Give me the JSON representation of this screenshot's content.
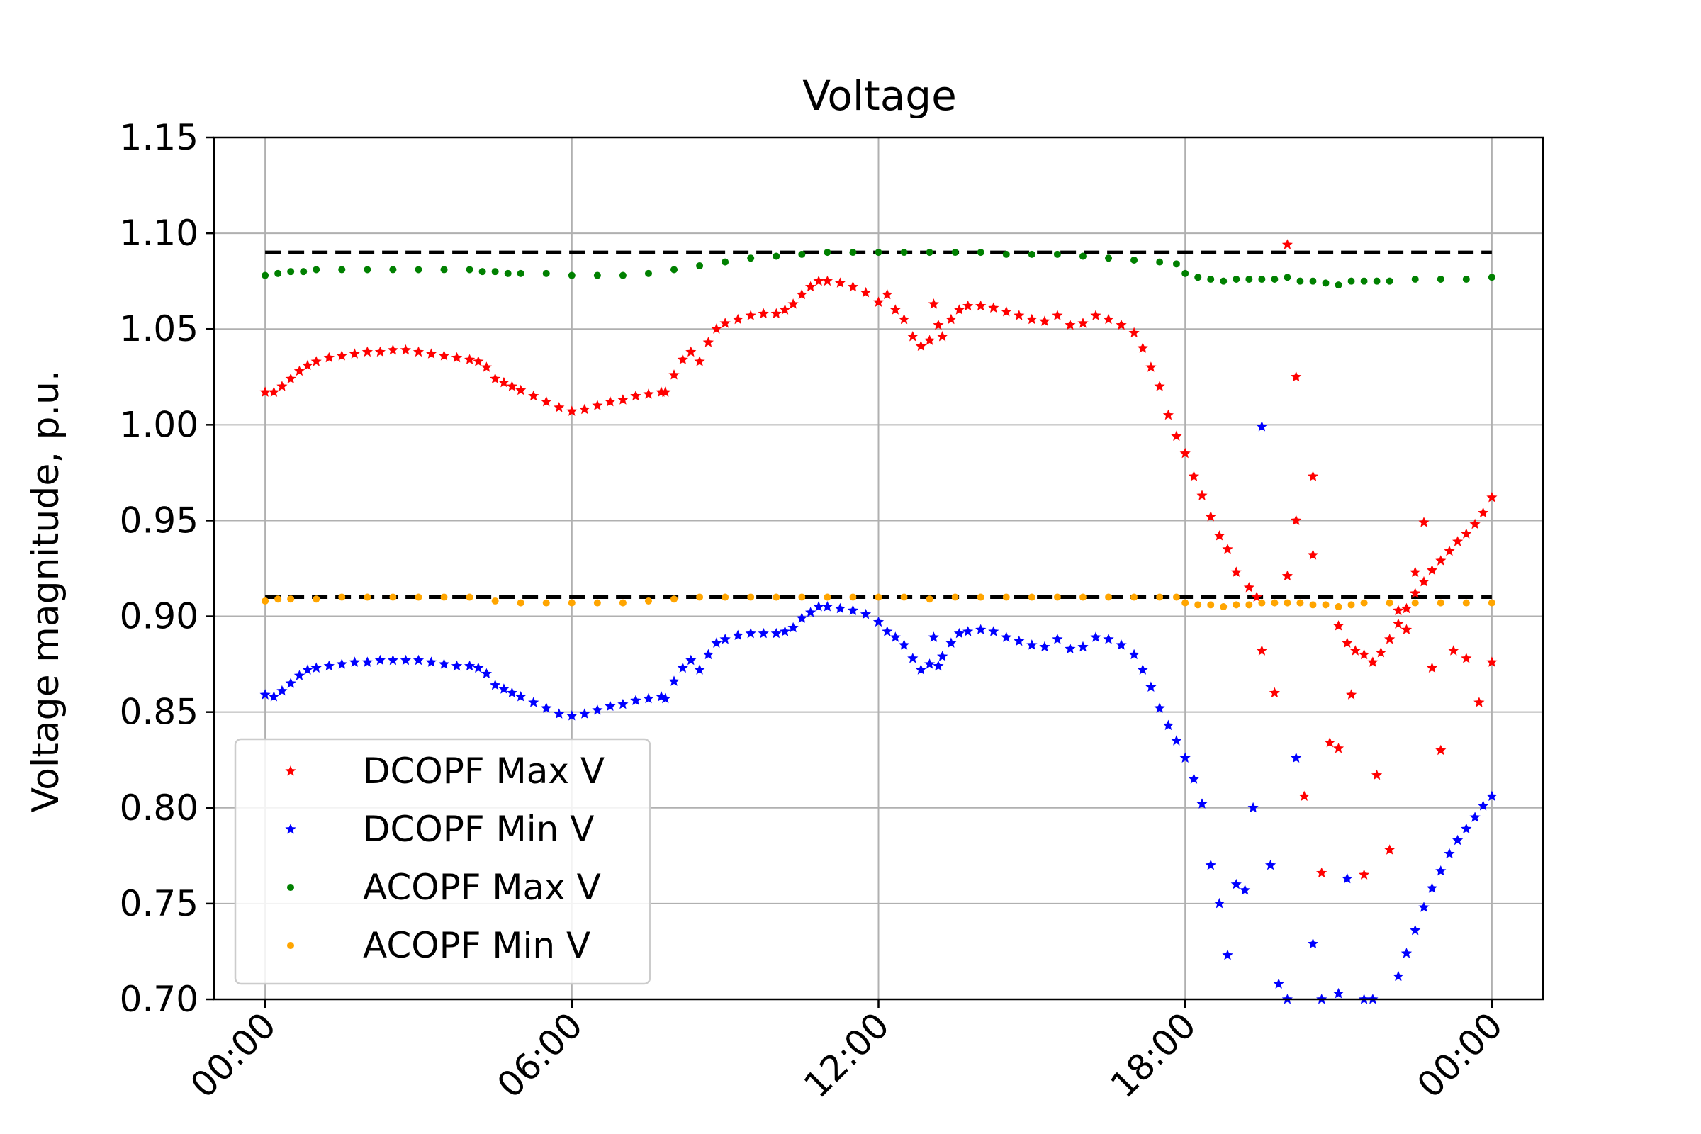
{
  "chart_data": {
    "type": "scatter",
    "title": "Voltage",
    "xlabel": "",
    "ylabel": "Voltage magnitude, p.u.",
    "ylim": [
      0.7,
      1.15
    ],
    "xlim": [
      -1,
      25
    ],
    "x_ticks": [
      {
        "value": 0,
        "label": "00:00"
      },
      {
        "value": 6,
        "label": "06:00"
      },
      {
        "value": 12,
        "label": "12:00"
      },
      {
        "value": 18,
        "label": "18:00"
      },
      {
        "value": 24,
        "label": "00:00"
      }
    ],
    "y_ticks": [
      {
        "value": 0.7,
        "label": "0.70"
      },
      {
        "value": 0.75,
        "label": "0.75"
      },
      {
        "value": 0.8,
        "label": "0.80"
      },
      {
        "value": 0.85,
        "label": "0.85"
      },
      {
        "value": 0.9,
        "label": "0.90"
      },
      {
        "value": 0.95,
        "label": "0.95"
      },
      {
        "value": 1.0,
        "label": "1.00"
      },
      {
        "value": 1.05,
        "label": "1.05"
      },
      {
        "value": 1.1,
        "label": "1.10"
      },
      {
        "value": 1.15,
        "label": "1.15"
      }
    ],
    "grid": true,
    "legend_position": "lower-left",
    "limits": [
      {
        "value": 1.09,
        "x": [
          0,
          24
        ],
        "color": "#000000",
        "style": "dashed"
      },
      {
        "value": 0.91,
        "x": [
          0,
          24
        ],
        "color": "#000000",
        "style": "dashed"
      }
    ],
    "series": [
      {
        "name": "DCOPF Max V",
        "color": "#ff0000",
        "marker": "star",
        "x": [
          0.0,
          0.17,
          0.33,
          0.5,
          0.67,
          0.83,
          1.0,
          1.25,
          1.5,
          1.75,
          2.0,
          2.25,
          2.5,
          2.75,
          3.0,
          3.25,
          3.5,
          3.75,
          4.0,
          4.17,
          4.33,
          4.5,
          4.67,
          4.83,
          5.0,
          5.25,
          5.5,
          5.75,
          6.0,
          6.25,
          6.5,
          6.75,
          7.0,
          7.25,
          7.5,
          7.75,
          7.83,
          8.0,
          8.17,
          8.33,
          8.5,
          8.67,
          8.83,
          9.0,
          9.25,
          9.5,
          9.75,
          10.0,
          10.17,
          10.33,
          10.5,
          10.67,
          10.83,
          11.0,
          11.25,
          11.5,
          11.75,
          12.0,
          12.17,
          12.33,
          12.5,
          12.67,
          12.83,
          13.0,
          13.08,
          13.17,
          13.25,
          13.42,
          13.58,
          13.75,
          14.0,
          14.25,
          14.5,
          14.75,
          15.0,
          15.25,
          15.5,
          15.75,
          16.0,
          16.25,
          16.5,
          16.75,
          17.0,
          17.17,
          17.33,
          17.5,
          17.67,
          17.83,
          18.0,
          18.17,
          18.33,
          18.5,
          18.67,
          18.83,
          19.0,
          19.25,
          19.5,
          19.75,
          20.0,
          20.17,
          20.33,
          20.5,
          20.67,
          20.83,
          21.0,
          21.25,
          21.5,
          21.75,
          22.0,
          22.17,
          22.33,
          22.5,
          22.67,
          22.83,
          23.0,
          23.25,
          23.5,
          23.75,
          24.0
        ],
        "y": [
          1.017,
          1.017,
          1.02,
          1.024,
          1.028,
          1.031,
          1.033,
          1.035,
          1.036,
          1.037,
          1.038,
          1.038,
          1.039,
          1.039,
          1.038,
          1.037,
          1.036,
          1.035,
          1.034,
          1.033,
          1.03,
          1.024,
          1.022,
          1.02,
          1.018,
          1.015,
          1.012,
          1.009,
          1.007,
          1.008,
          1.01,
          1.012,
          1.013,
          1.015,
          1.016,
          1.017,
          1.017,
          1.026,
          1.034,
          1.038,
          1.033,
          1.043,
          1.05,
          1.053,
          1.055,
          1.057,
          1.058,
          1.058,
          1.06,
          1.063,
          1.068,
          1.072,
          1.075,
          1.075,
          1.074,
          1.072,
          1.069,
          1.064,
          1.068,
          1.06,
          1.055,
          1.046,
          1.041,
          1.044,
          1.063,
          1.052,
          1.046,
          1.055,
          1.06,
          1.062,
          1.062,
          1.061,
          1.059,
          1.057,
          1.055,
          1.054,
          1.057,
          1.052,
          1.053,
          1.057,
          1.055,
          1.052,
          1.048,
          1.04,
          1.03,
          1.02,
          1.005,
          0.994,
          0.985,
          0.973,
          0.963,
          0.952,
          0.942,
          0.935,
          0.923,
          0.915,
          0.882,
          0.86,
          0.921,
          0.95,
          0.806,
          0.932,
          0.766,
          0.834,
          0.831,
          0.859,
          0.765,
          0.817,
          0.778,
          0.903,
          0.893,
          0.923,
          0.949,
          0.873,
          0.83,
          0.882,
          0.878,
          0.855,
          0.876
        ],
        "extra_points": [
          {
            "x": 19.4,
            "y": 0.91
          },
          {
            "x": 20.0,
            "y": 1.094
          },
          {
            "x": 20.17,
            "y": 1.025
          },
          {
            "x": 20.5,
            "y": 0.973
          },
          {
            "x": 21.0,
            "y": 0.895
          },
          {
            "x": 21.17,
            "y": 0.886
          },
          {
            "x": 21.33,
            "y": 0.882
          },
          {
            "x": 21.5,
            "y": 0.88
          },
          {
            "x": 21.67,
            "y": 0.876
          },
          {
            "x": 21.83,
            "y": 0.881
          },
          {
            "x": 22.0,
            "y": 0.888
          },
          {
            "x": 22.17,
            "y": 0.896
          },
          {
            "x": 22.33,
            "y": 0.904
          },
          {
            "x": 22.5,
            "y": 0.912
          },
          {
            "x": 22.67,
            "y": 0.918
          },
          {
            "x": 22.83,
            "y": 0.924
          },
          {
            "x": 23.0,
            "y": 0.929
          },
          {
            "x": 23.17,
            "y": 0.934
          },
          {
            "x": 23.33,
            "y": 0.939
          },
          {
            "x": 23.5,
            "y": 0.943
          },
          {
            "x": 23.67,
            "y": 0.948
          },
          {
            "x": 23.83,
            "y": 0.954
          },
          {
            "x": 24.0,
            "y": 0.962
          }
        ]
      },
      {
        "name": "DCOPF Min V",
        "color": "#0000ff",
        "marker": "star",
        "x": [
          0.0,
          0.17,
          0.33,
          0.5,
          0.67,
          0.83,
          1.0,
          1.25,
          1.5,
          1.75,
          2.0,
          2.25,
          2.5,
          2.75,
          3.0,
          3.25,
          3.5,
          3.75,
          4.0,
          4.17,
          4.33,
          4.5,
          4.67,
          4.83,
          5.0,
          5.25,
          5.5,
          5.75,
          6.0,
          6.25,
          6.5,
          6.75,
          7.0,
          7.25,
          7.5,
          7.75,
          7.83,
          8.0,
          8.17,
          8.33,
          8.5,
          8.67,
          8.83,
          9.0,
          9.25,
          9.5,
          9.75,
          10.0,
          10.17,
          10.33,
          10.5,
          10.67,
          10.83,
          11.0,
          11.25,
          11.5,
          11.75,
          12.0,
          12.17,
          12.33,
          12.5,
          12.67,
          12.83,
          13.0,
          13.08,
          13.17,
          13.25,
          13.42,
          13.58,
          13.75,
          14.0,
          14.25,
          14.5,
          14.75,
          15.0,
          15.25,
          15.5,
          15.75,
          16.0,
          16.25,
          16.5,
          16.75,
          17.0,
          17.17,
          17.33,
          17.5,
          17.67,
          17.83,
          18.0,
          18.17,
          18.33,
          18.5,
          18.67,
          18.83,
          19.0,
          19.17,
          19.33,
          19.5,
          19.67,
          19.83,
          20.0,
          20.17,
          20.5,
          20.67,
          21.0,
          21.17,
          21.5,
          21.67
        ],
        "y": [
          0.859,
          0.858,
          0.861,
          0.865,
          0.869,
          0.872,
          0.873,
          0.874,
          0.875,
          0.876,
          0.876,
          0.877,
          0.877,
          0.877,
          0.877,
          0.876,
          0.875,
          0.874,
          0.874,
          0.873,
          0.87,
          0.864,
          0.862,
          0.86,
          0.858,
          0.855,
          0.852,
          0.849,
          0.848,
          0.849,
          0.851,
          0.853,
          0.854,
          0.856,
          0.857,
          0.858,
          0.857,
          0.866,
          0.873,
          0.877,
          0.872,
          0.88,
          0.886,
          0.888,
          0.89,
          0.891,
          0.891,
          0.891,
          0.892,
          0.894,
          0.899,
          0.902,
          0.905,
          0.905,
          0.904,
          0.903,
          0.901,
          0.897,
          0.892,
          0.889,
          0.885,
          0.878,
          0.872,
          0.875,
          0.889,
          0.874,
          0.879,
          0.886,
          0.891,
          0.892,
          0.893,
          0.892,
          0.889,
          0.887,
          0.885,
          0.884,
          0.888,
          0.883,
          0.884,
          0.889,
          0.888,
          0.885,
          0.88,
          0.872,
          0.863,
          0.852,
          0.843,
          0.835,
          0.826,
          0.815,
          0.802,
          0.77,
          0.75,
          0.723,
          0.76,
          0.757,
          0.8,
          0.999,
          0.77,
          0.708,
          0.7,
          0.826,
          0.729,
          0.7,
          0.703,
          0.763,
          0.7,
          0.7
        ],
        "extra_points": [
          {
            "x": 22.17,
            "y": 0.712
          },
          {
            "x": 22.33,
            "y": 0.724
          },
          {
            "x": 22.5,
            "y": 0.736
          },
          {
            "x": 22.67,
            "y": 0.748
          },
          {
            "x": 22.83,
            "y": 0.758
          },
          {
            "x": 23.0,
            "y": 0.767
          },
          {
            "x": 23.17,
            "y": 0.776
          },
          {
            "x": 23.33,
            "y": 0.783
          },
          {
            "x": 23.5,
            "y": 0.789
          },
          {
            "x": 23.67,
            "y": 0.795
          },
          {
            "x": 23.83,
            "y": 0.801
          },
          {
            "x": 24.0,
            "y": 0.806
          }
        ]
      },
      {
        "name": "ACOPF Max V",
        "color": "#008000",
        "marker": "dot",
        "x": [
          0.0,
          0.25,
          0.5,
          0.75,
          1.0,
          1.5,
          2.0,
          2.5,
          3.0,
          3.5,
          4.0,
          4.25,
          4.5,
          4.75,
          5.0,
          5.5,
          6.0,
          6.5,
          7.0,
          7.5,
          8.0,
          8.5,
          9.0,
          9.5,
          10.0,
          10.5,
          11.0,
          11.5,
          12.0,
          12.5,
          13.0,
          13.5,
          14.0,
          14.5,
          15.0,
          15.5,
          16.0,
          16.5,
          17.0,
          17.5,
          17.83,
          18.0,
          18.25,
          18.5,
          18.75,
          19.0,
          19.25,
          19.5,
          19.75,
          20.0,
          20.25,
          20.5,
          20.75,
          21.0,
          21.25,
          21.5,
          21.75,
          22.0,
          22.5,
          23.0,
          23.5,
          24.0
        ],
        "y": [
          1.078,
          1.079,
          1.08,
          1.08,
          1.081,
          1.081,
          1.081,
          1.081,
          1.081,
          1.081,
          1.081,
          1.08,
          1.08,
          1.079,
          1.079,
          1.079,
          1.078,
          1.078,
          1.078,
          1.079,
          1.081,
          1.083,
          1.085,
          1.087,
          1.088,
          1.089,
          1.09,
          1.09,
          1.09,
          1.09,
          1.09,
          1.09,
          1.09,
          1.089,
          1.089,
          1.089,
          1.088,
          1.087,
          1.086,
          1.085,
          1.084,
          1.079,
          1.077,
          1.076,
          1.075,
          1.076,
          1.076,
          1.076,
          1.076,
          1.077,
          1.075,
          1.075,
          1.074,
          1.073,
          1.075,
          1.075,
          1.075,
          1.075,
          1.076,
          1.076,
          1.076,
          1.077
        ]
      },
      {
        "name": "ACOPF Min V",
        "color": "#ffa500",
        "marker": "dot",
        "x": [
          0.0,
          0.25,
          0.5,
          1.0,
          1.5,
          2.0,
          2.5,
          3.0,
          3.5,
          4.0,
          4.5,
          5.0,
          5.5,
          6.0,
          6.5,
          7.0,
          7.5,
          8.0,
          8.5,
          9.0,
          9.5,
          10.0,
          10.5,
          11.0,
          11.5,
          12.0,
          12.5,
          13.0,
          13.5,
          14.0,
          14.5,
          15.0,
          15.5,
          16.0,
          16.5,
          17.0,
          17.5,
          17.83,
          18.0,
          18.25,
          18.5,
          18.75,
          19.0,
          19.25,
          19.5,
          19.75,
          20.0,
          20.25,
          20.5,
          20.75,
          21.0,
          21.25,
          21.5,
          22.0,
          22.5,
          23.0,
          23.5,
          24.0
        ],
        "y": [
          0.908,
          0.909,
          0.909,
          0.909,
          0.91,
          0.91,
          0.91,
          0.91,
          0.91,
          0.91,
          0.908,
          0.907,
          0.907,
          0.907,
          0.907,
          0.907,
          0.908,
          0.909,
          0.91,
          0.91,
          0.91,
          0.91,
          0.91,
          0.91,
          0.91,
          0.91,
          0.91,
          0.909,
          0.91,
          0.91,
          0.91,
          0.91,
          0.91,
          0.91,
          0.91,
          0.91,
          0.91,
          0.91,
          0.907,
          0.906,
          0.906,
          0.905,
          0.906,
          0.906,
          0.907,
          0.907,
          0.907,
          0.907,
          0.906,
          0.906,
          0.905,
          0.906,
          0.907,
          0.907,
          0.907,
          0.907,
          0.907,
          0.907
        ]
      }
    ]
  }
}
